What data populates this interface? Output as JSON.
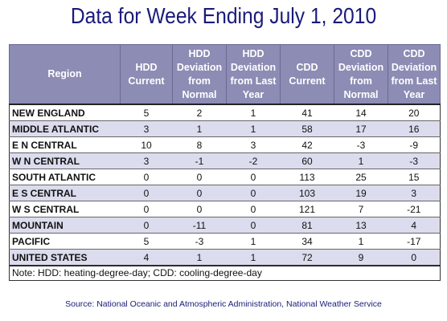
{
  "title": "Data for Week Ending July 1, 2010",
  "table": {
    "headers": [
      "Region",
      "HDD Current",
      "HDD Deviation from Normal",
      "HDD Deviation from Last Year",
      "CDD Current",
      "CDD Deviation from Normal",
      "CDD Deviation from Last Year"
    ],
    "rows": [
      [
        "NEW ENGLAND",
        "5",
        "2",
        "1",
        "41",
        "14",
        "20"
      ],
      [
        "MIDDLE ATLANTIC",
        "3",
        "1",
        "1",
        "58",
        "17",
        "16"
      ],
      [
        "E N CENTRAL",
        "10",
        "8",
        "3",
        "42",
        "-3",
        "-9"
      ],
      [
        "W N CENTRAL",
        "3",
        "-1",
        "-2",
        "60",
        "1",
        "-3"
      ],
      [
        "SOUTH ATLANTIC",
        "0",
        "0",
        "0",
        "113",
        "25",
        "15"
      ],
      [
        "E S CENTRAL",
        "0",
        "0",
        "0",
        "103",
        "19",
        "3"
      ],
      [
        "W S CENTRAL",
        "0",
        "0",
        "0",
        "121",
        "7",
        "-21"
      ],
      [
        "MOUNTAIN",
        "0",
        "-11",
        "0",
        "81",
        "13",
        "4"
      ],
      [
        "PACIFIC",
        "5",
        "-3",
        "1",
        "34",
        "1",
        "-17"
      ],
      [
        "UNITED STATES",
        "4",
        "1",
        "1",
        "72",
        "9",
        "0"
      ]
    ]
  },
  "note": "Note: HDD: heating-degree-day; CDD: cooling-degree-day",
  "source": "Source:  National Oceanic and Atmospheric Administration, National Weather Service",
  "colors": {
    "header_bg": "#8c8cb4",
    "alt_row_bg": "#dcdcee",
    "title_color": "#1a1a7a"
  }
}
